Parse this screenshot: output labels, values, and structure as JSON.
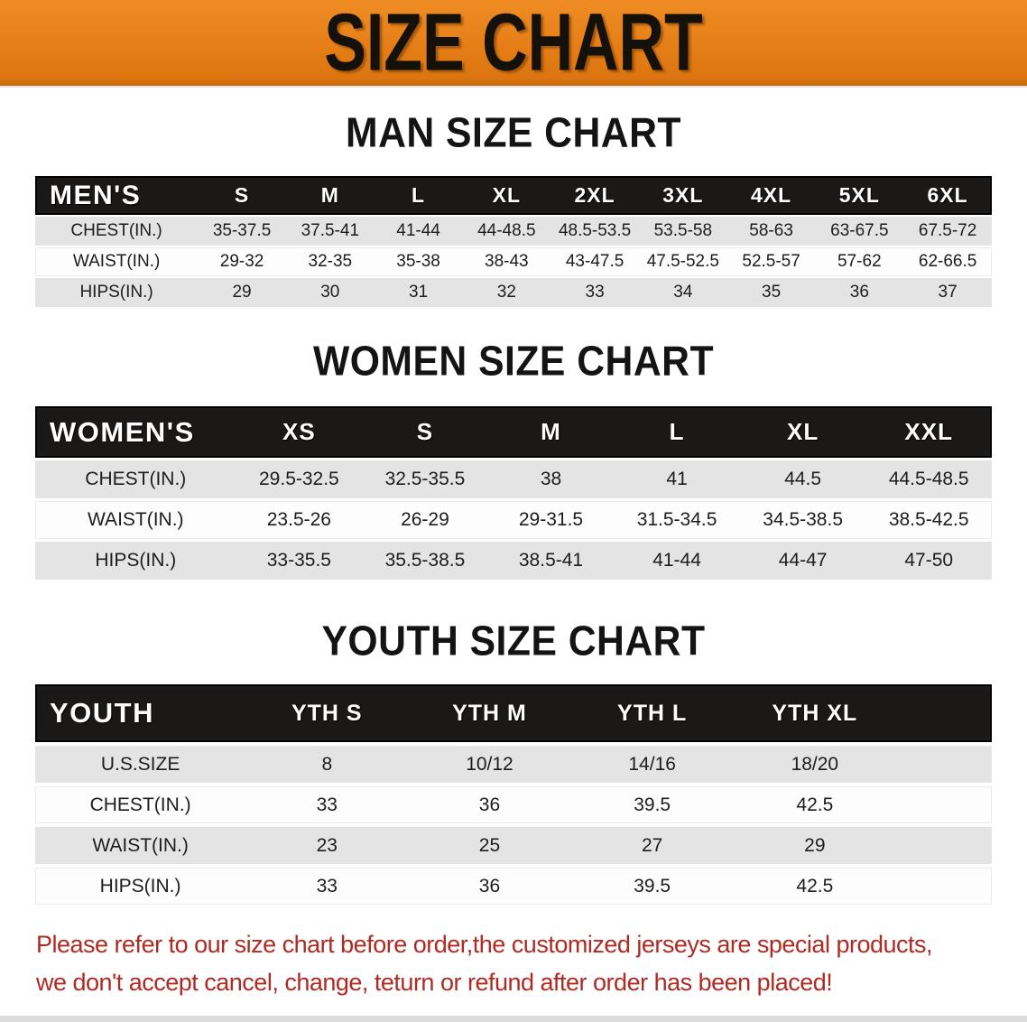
{
  "banner": {
    "title": "SIZE CHART"
  },
  "colors": {
    "banner_orange": "#e67e17",
    "table_header_black": "#1b1918",
    "row_gray": "#e4e4e4",
    "row_white": "#fdfdfd",
    "disclaimer_red": "#b12a22",
    "heading_black": "#141414"
  },
  "sections": [
    {
      "heading": "MAN SIZE CHART",
      "table": {
        "header_label": "MEN'S",
        "columns": [
          "S",
          "M",
          "L",
          "XL",
          "2XL",
          "3XL",
          "4XL",
          "5XL",
          "6XL"
        ],
        "rows": [
          {
            "label": "CHEST(IN.)",
            "values": [
              "35-37.5",
              "37.5-41",
              "41-44",
              "44-48.5",
              "48.5-53.5",
              "53.5-58",
              "58-63",
              "63-67.5",
              "67.5-72"
            ]
          },
          {
            "label": "WAIST(IN.)",
            "values": [
              "29-32",
              "32-35",
              "35-38",
              "38-43",
              "43-47.5",
              "47.5-52.5",
              "52.5-57",
              "57-62",
              "62-66.5"
            ]
          },
          {
            "label": "HIPS(IN.)",
            "values": [
              "29",
              "30",
              "31",
              "32",
              "33",
              "34",
              "35",
              "36",
              "37"
            ]
          }
        ]
      }
    },
    {
      "heading": "WOMEN SIZE CHART",
      "table": {
        "header_label": "WOMEN'S",
        "columns": [
          "XS",
          "S",
          "M",
          "L",
          "XL",
          "XXL"
        ],
        "rows": [
          {
            "label": "CHEST(IN.)",
            "values": [
              "29.5-32.5",
              "32.5-35.5",
              "38",
              "41",
              "44.5",
              "44.5-48.5"
            ]
          },
          {
            "label": "WAIST(IN.)",
            "values": [
              "23.5-26",
              "26-29",
              "29-31.5",
              "31.5-34.5",
              "34.5-38.5",
              "38.5-42.5"
            ]
          },
          {
            "label": "HIPS(IN.)",
            "values": [
              "33-35.5",
              "35.5-38.5",
              "38.5-41",
              "41-44",
              "44-47",
              "47-50"
            ]
          }
        ]
      }
    },
    {
      "heading": "YOUTH SIZE CHART",
      "table": {
        "header_label": "YOUTH",
        "columns": [
          "YTH S",
          "YTH M",
          "YTH L",
          "YTH XL"
        ],
        "rows": [
          {
            "label": "U.S.SIZE",
            "values": [
              "8",
              "10/12",
              "14/16",
              "18/20"
            ]
          },
          {
            "label": "CHEST(IN.)",
            "values": [
              "33",
              "36",
              "39.5",
              "42.5"
            ]
          },
          {
            "label": "WAIST(IN.)",
            "values": [
              "23",
              "25",
              "27",
              "29"
            ]
          },
          {
            "label": "HIPS(IN.)",
            "values": [
              "33",
              "36",
              "39.5",
              "42.5"
            ]
          }
        ]
      }
    }
  ],
  "disclaimer": {
    "line1": "Please refer to our size chart before order,the customized jerseys are special products,",
    "line2": "we don't accept cancel, change, teturn or refund after order has been placed!"
  }
}
